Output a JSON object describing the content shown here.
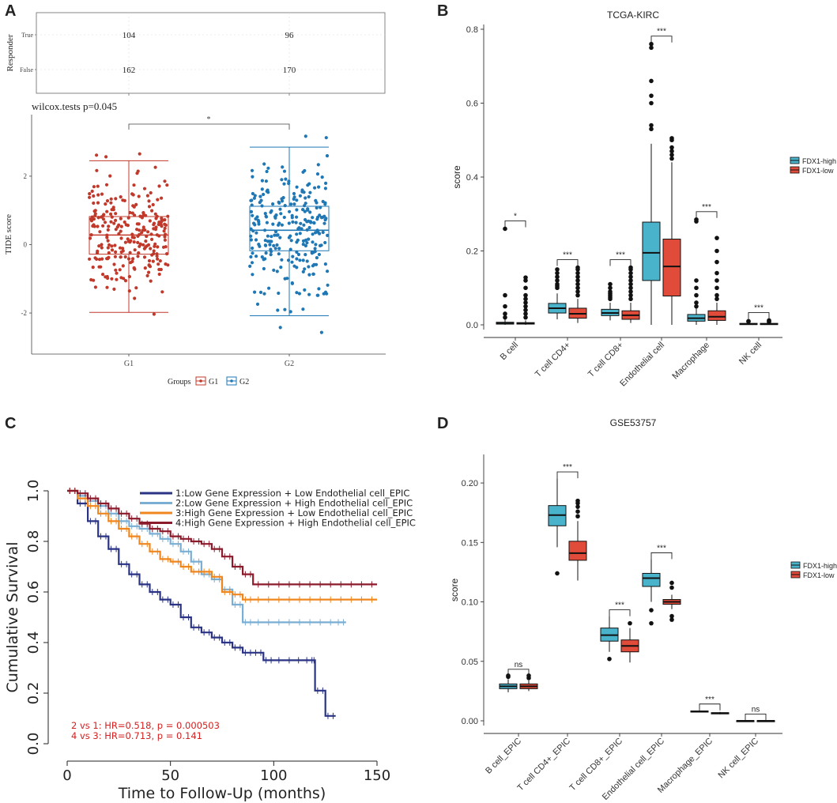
{
  "colors": {
    "g1": "#c0392b",
    "g2": "#1f77b4",
    "high": "#4ab3cc",
    "low": "#e04b3a",
    "km1": "#2a3384",
    "km2": "#7aaed3",
    "km3": "#f0861e",
    "km4": "#8b1a2b",
    "hr_text": "#d42020"
  },
  "chart_data": [
    {
      "panel": "A",
      "type": "table",
      "ylabel": "Responder",
      "rows": [
        "True",
        "False"
      ],
      "columns": [
        "G1",
        "G2"
      ],
      "values": [
        [
          104,
          96
        ],
        [
          162,
          170
        ]
      ]
    },
    {
      "panel": "A",
      "type": "scatter",
      "subtitle": "wilcox.tests p=0.045",
      "ylabel": "TIDE score",
      "xlabel": "",
      "categories": [
        "G1",
        "G2"
      ],
      "yticks": [
        "2",
        "0",
        "-2"
      ],
      "ylim": [
        -3.2,
        3.8
      ],
      "boxes": [
        {
          "group": "G1",
          "min": -1.98,
          "q1": -0.28,
          "median": 0.28,
          "q3": 0.82,
          "max": 2.45,
          "n": 266
        },
        {
          "group": "G2",
          "min": -2.08,
          "q1": -0.18,
          "median": 0.42,
          "q3": 1.12,
          "max": 2.85,
          "n": 266
        }
      ],
      "significance": "*",
      "legend_title": "Groups",
      "legend": [
        "G1",
        "G2"
      ]
    },
    {
      "panel": "B",
      "type": "box",
      "title": "TCGA-KIRC",
      "ylabel": "score",
      "yticks": [
        "0.0",
        "0.2",
        "0.4",
        "0.6",
        "0.8"
      ],
      "ylim": [
        0,
        0.8
      ],
      "categories": [
        "B cell",
        "T cell CD4+",
        "T cell CD8+",
        "Endothelial cell",
        "Macrophage",
        "NK cell"
      ],
      "significance": [
        "*",
        "***",
        "***",
        "***",
        "***",
        "***"
      ],
      "series": [
        {
          "name": "FDX1-high",
          "boxes": [
            {
              "min": 0,
              "q1": 0.002,
              "median": 0.004,
              "q3": 0.007,
              "max": 0.015,
              "outliers": [
                0.26,
                0.08,
                0.05,
                0.03,
                0.02
              ]
            },
            {
              "min": 0.015,
              "q1": 0.032,
              "median": 0.045,
              "q3": 0.058,
              "max": 0.085,
              "outliers": [
                0.1,
                0.105,
                0.11,
                0.12,
                0.13,
                0.14,
                0.15
              ]
            },
            {
              "min": 0.012,
              "q1": 0.025,
              "median": 0.032,
              "q3": 0.042,
              "max": 0.06,
              "outliers": [
                0.07,
                0.075,
                0.08,
                0.085,
                0.09,
                0.1,
                0.11
              ]
            },
            {
              "min": 0,
              "q1": 0.12,
              "median": 0.195,
              "q3": 0.278,
              "max": 0.49,
              "outliers": [
                0.53,
                0.54,
                0.6,
                0.62,
                0.66,
                0.75,
                0.76
              ]
            },
            {
              "min": 0,
              "q1": 0.01,
              "median": 0.018,
              "q3": 0.028,
              "max": 0.045,
              "outliers": [
                0.05,
                0.06,
                0.08,
                0.1,
                0.12,
                0.285,
                0.28
              ]
            },
            {
              "min": 0,
              "q1": 0.001,
              "median": 0.002,
              "q3": 0.004,
              "max": 0.007,
              "outliers": [
                0.009,
                0.01
              ]
            }
          ]
        },
        {
          "name": "FDX1-low",
          "boxes": [
            {
              "min": 0,
              "q1": 0.002,
              "median": 0.004,
              "q3": 0.006,
              "max": 0.012,
              "outliers": [
                0.02,
                0.03,
                0.04,
                0.05,
                0.06,
                0.07,
                0.08,
                0.1,
                0.12,
                0.128
              ]
            },
            {
              "min": 0.005,
              "q1": 0.018,
              "median": 0.03,
              "q3": 0.045,
              "max": 0.07,
              "outliers": [
                0.08,
                0.09,
                0.1,
                0.11,
                0.12,
                0.13,
                0.14,
                0.15,
                0.155
              ]
            },
            {
              "min": 0.005,
              "q1": 0.015,
              "median": 0.026,
              "q3": 0.038,
              "max": 0.06,
              "outliers": [
                0.07,
                0.08,
                0.09,
                0.1,
                0.11,
                0.12,
                0.13,
                0.14,
                0.15,
                0.155
              ]
            },
            {
              "min": 0,
              "q1": 0.078,
              "median": 0.158,
              "q3": 0.232,
              "max": 0.44,
              "outliers": [
                0.45,
                0.46,
                0.47,
                0.48,
                0.5,
                0.505
              ]
            },
            {
              "min": 0,
              "q1": 0.012,
              "median": 0.022,
              "q3": 0.038,
              "max": 0.06,
              "outliers": [
                0.07,
                0.08,
                0.1,
                0.12,
                0.14,
                0.17,
                0.2,
                0.235
              ]
            },
            {
              "min": 0,
              "q1": 0.001,
              "median": 0.002,
              "q3": 0.004,
              "max": 0.006,
              "outliers": [
                0.008,
                0.01,
                0.012
              ]
            }
          ]
        }
      ],
      "legend": [
        "FDX1-high",
        "FDX1-low"
      ]
    },
    {
      "panel": "C",
      "type": "line",
      "title": "",
      "xlabel": "Time to Follow-Up (months)",
      "ylabel": "Cumulative Survival",
      "xticks": [
        "0",
        "50",
        "100",
        "150"
      ],
      "yticks": [
        "0.0",
        "0.2",
        "0.4",
        "0.6",
        "0.8",
        "1.0"
      ],
      "xlim": [
        -5,
        153
      ],
      "ylim": [
        -0.02,
        1.04
      ],
      "series": [
        {
          "name": "1:Low Gene Expression + Low Endothelial cell_EPIC",
          "x": [
            0,
            5,
            10,
            15,
            20,
            25,
            30,
            35,
            40,
            45,
            50,
            55,
            60,
            65,
            70,
            75,
            80,
            85,
            90,
            95,
            100,
            110,
            118,
            120,
            125,
            130
          ],
          "y": [
            1.0,
            0.95,
            0.88,
            0.82,
            0.77,
            0.71,
            0.67,
            0.63,
            0.6,
            0.57,
            0.55,
            0.5,
            0.46,
            0.44,
            0.42,
            0.4,
            0.38,
            0.36,
            0.36,
            0.33,
            0.33,
            0.33,
            0.33,
            0.21,
            0.11,
            0.11
          ]
        },
        {
          "name": "2:Low Gene Expression + High Endothelial cell_EPIC",
          "x": [
            0,
            5,
            10,
            15,
            20,
            25,
            30,
            35,
            40,
            45,
            50,
            55,
            60,
            65,
            70,
            75,
            80,
            85,
            90,
            100,
            110,
            120,
            130,
            135
          ],
          "y": [
            1.0,
            0.98,
            0.96,
            0.94,
            0.91,
            0.88,
            0.86,
            0.85,
            0.83,
            0.81,
            0.79,
            0.76,
            0.72,
            0.67,
            0.65,
            0.61,
            0.55,
            0.48,
            0.48,
            0.48,
            0.48,
            0.48,
            0.48,
            0.48
          ]
        },
        {
          "name": "3:High Gene Expression + Low Endothelial cell_EPIC",
          "x": [
            0,
            5,
            10,
            15,
            20,
            25,
            30,
            35,
            40,
            45,
            50,
            55,
            60,
            65,
            70,
            75,
            80,
            85,
            90,
            100,
            110,
            120,
            130,
            140,
            150
          ],
          "y": [
            1.0,
            0.97,
            0.94,
            0.91,
            0.88,
            0.85,
            0.82,
            0.79,
            0.76,
            0.73,
            0.72,
            0.7,
            0.68,
            0.68,
            0.66,
            0.6,
            0.59,
            0.57,
            0.57,
            0.57,
            0.57,
            0.57,
            0.57,
            0.57,
            0.57
          ]
        },
        {
          "name": "4:High Gene Expression + High Endothelial cell_EPIC",
          "x": [
            0,
            5,
            10,
            15,
            20,
            25,
            30,
            35,
            40,
            45,
            50,
            55,
            60,
            65,
            70,
            75,
            80,
            85,
            90,
            100,
            110,
            120,
            130,
            140,
            150
          ],
          "y": [
            1.0,
            0.99,
            0.97,
            0.95,
            0.93,
            0.91,
            0.89,
            0.87,
            0.85,
            0.84,
            0.82,
            0.81,
            0.8,
            0.79,
            0.77,
            0.74,
            0.7,
            0.67,
            0.63,
            0.63,
            0.63,
            0.63,
            0.63,
            0.63,
            0.63
          ]
        }
      ],
      "annotations": [
        "2 vs 1: HR=0.518, p = 0.000503",
        "4 vs 3: HR=0.713, p = 0.141"
      ]
    },
    {
      "panel": "D",
      "type": "box",
      "title": "GSE53757",
      "ylabel": "score",
      "yticks": [
        "0.00",
        "0.05",
        "0.10",
        "0.15",
        "0.20"
      ],
      "ylim": [
        0,
        0.22
      ],
      "categories": [
        "B cell_EPIC",
        "T cell CD4+_EPIC",
        "T cell CD8+_EPIC",
        "Endothelial cell_EPIC",
        "Macrophage_EPIC",
        "NK cell_EPIC"
      ],
      "significance": [
        "ns",
        "***",
        "***",
        "***",
        "***",
        "ns"
      ],
      "series": [
        {
          "name": "FDX1-high",
          "boxes": [
            {
              "min": 0.024,
              "q1": 0.027,
              "median": 0.029,
              "q3": 0.031,
              "max": 0.035,
              "outliers": [
                0.037,
                0.038
              ]
            },
            {
              "min": 0.146,
              "q1": 0.164,
              "median": 0.173,
              "q3": 0.181,
              "max": 0.204,
              "outliers": [
                0.124
              ]
            },
            {
              "min": 0.058,
              "q1": 0.067,
              "median": 0.072,
              "q3": 0.078,
              "max": 0.088,
              "outliers": [
                0.052
              ]
            },
            {
              "min": 0.1,
              "q1": 0.113,
              "median": 0.12,
              "q3": 0.124,
              "max": 0.136,
              "outliers": [
                0.093,
                0.082
              ]
            },
            {
              "min": 0.007,
              "q1": 0.0077,
              "median": 0.008,
              "q3": 0.0083,
              "max": 0.0088,
              "outliers": []
            },
            {
              "min": 0,
              "q1": 0,
              "median": 0,
              "q3": 0.0002,
              "max": 0.0004,
              "outliers": []
            }
          ]
        },
        {
          "name": "FDX1-low",
          "boxes": [
            {
              "min": 0.025,
              "q1": 0.027,
              "median": 0.029,
              "q3": 0.031,
              "max": 0.034,
              "outliers": [
                0.036,
                0.038
              ]
            },
            {
              "min": 0.118,
              "q1": 0.135,
              "median": 0.141,
              "q3": 0.151,
              "max": 0.168,
              "outliers": [
                0.172,
                0.176,
                0.18,
                0.183,
                0.185
              ]
            },
            {
              "min": 0.049,
              "q1": 0.058,
              "median": 0.063,
              "q3": 0.068,
              "max": 0.078,
              "outliers": [
                0.082
              ]
            },
            {
              "min": 0.094,
              "q1": 0.098,
              "median": 0.1,
              "q3": 0.102,
              "max": 0.106,
              "outliers": [
                0.088,
                0.085,
                0.112,
                0.116
              ]
            },
            {
              "min": 0.0055,
              "q1": 0.0062,
              "median": 0.0065,
              "q3": 0.0068,
              "max": 0.0075,
              "outliers": []
            },
            {
              "min": 0,
              "q1": 0,
              "median": 0,
              "q3": 0.0002,
              "max": 0.0004,
              "outliers": []
            }
          ]
        }
      ],
      "legend": [
        "FDX1-high",
        "FDX1-low"
      ]
    }
  ],
  "panels": {
    "a": "A",
    "b": "B",
    "c": "C",
    "d": "D"
  }
}
